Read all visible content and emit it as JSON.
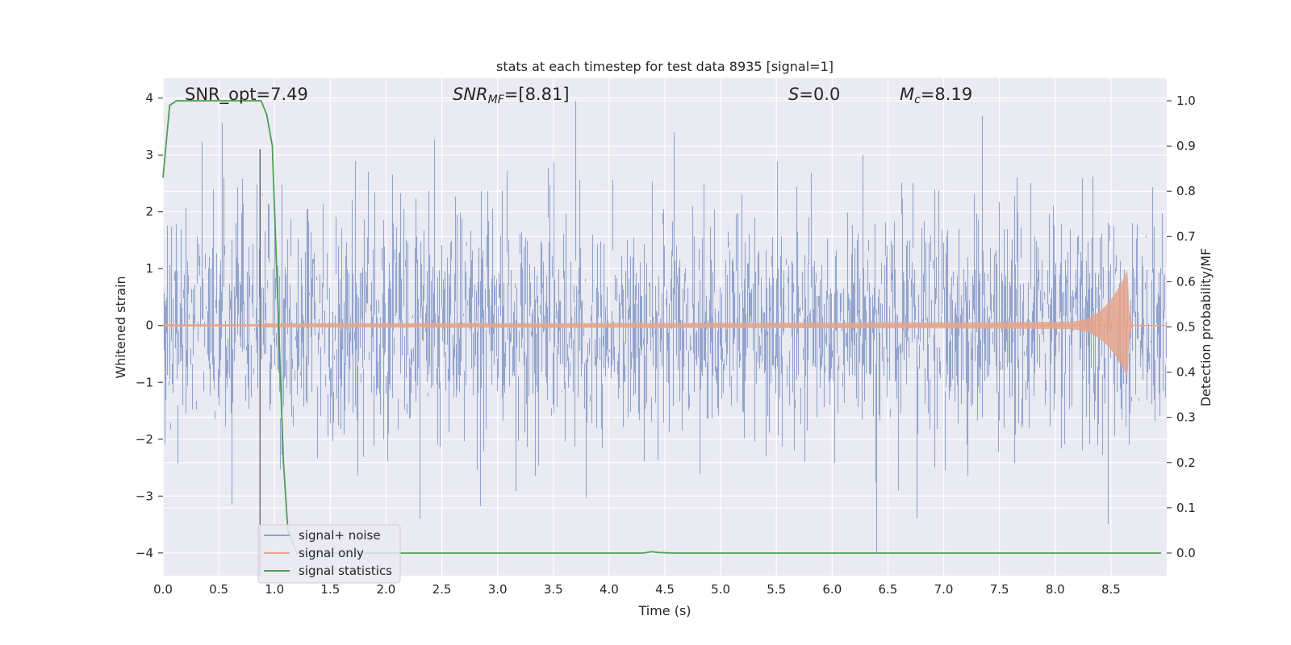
{
  "chart_data": {
    "type": "line",
    "title": "stats at each timestep for test data 8935 [signal=1]",
    "xlabel": "Time (s)",
    "ylabel": "Whitened strain",
    "y2label": "Detection probability/MF",
    "xlim": [
      0.0,
      9.0
    ],
    "ylim": [
      -4.4,
      4.35
    ],
    "y2lim": [
      -0.05,
      1.05
    ],
    "x_ticks": [
      "0.0",
      "0.5",
      "1.0",
      "1.5",
      "2.0",
      "2.5",
      "3.0",
      "3.5",
      "4.0",
      "4.5",
      "5.0",
      "5.5",
      "6.0",
      "6.5",
      "7.0",
      "7.5",
      "8.0",
      "8.5"
    ],
    "y_ticks": [
      "4",
      "3",
      "2",
      "1",
      "0",
      "−1",
      "−2",
      "−3",
      "−4"
    ],
    "y2_ticks": [
      "1.0",
      "0.9",
      "0.8",
      "0.7",
      "0.6",
      "0.5",
      "0.4",
      "0.3",
      "0.2",
      "0.1",
      "0.0"
    ],
    "grid": true,
    "legend_position": "lower-left",
    "annotations": {
      "snr_opt": "SNR_opt=7.49",
      "snr_mf_sym": "SNR",
      "snr_mf_sub": "MF",
      "snr_mf_val": "=[8.81]",
      "s_sym": "S",
      "s_val": "=0.0",
      "mc_sym": "M",
      "mc_sub": "c",
      "mc_val": "=8.19"
    },
    "marker_line_x": 0.87,
    "series": [
      {
        "name": "signal+ noise",
        "color": "#8da0cb",
        "description": "whitened noise, roughly N(0, 1), spanning ~-4 to 4",
        "sample_rate": 256
      },
      {
        "name": "signal only",
        "color": "#e5a58a",
        "description": "chirp growing in amplitude, peaking at ~8.65 s",
        "merger_time": 8.65,
        "peak_amplitude": 1.0
      },
      {
        "name": "signal statistics",
        "color": "#4a9e56",
        "axis": "right",
        "x": [
          0.0,
          0.06,
          0.12,
          0.2,
          0.3,
          0.4,
          0.5,
          0.6,
          0.7,
          0.8,
          0.88,
          0.93,
          0.98,
          1.03,
          1.08,
          1.12,
          1.2,
          1.5,
          2.0,
          3.0,
          4.0,
          4.3,
          4.38,
          4.45,
          4.6,
          5.0,
          6.0,
          7.0,
          8.0,
          8.95
        ],
        "y": [
          0.83,
          0.99,
          1.0,
          1.0,
          1.0,
          1.0,
          1.0,
          1.0,
          1.0,
          1.0,
          1.0,
          0.97,
          0.9,
          0.55,
          0.2,
          0.05,
          0.0,
          0.0,
          0.0,
          0.0,
          0.0,
          0.0,
          0.003,
          0.001,
          0.0,
          0.0,
          0.0,
          0.0,
          0.0,
          0.0
        ]
      }
    ]
  }
}
